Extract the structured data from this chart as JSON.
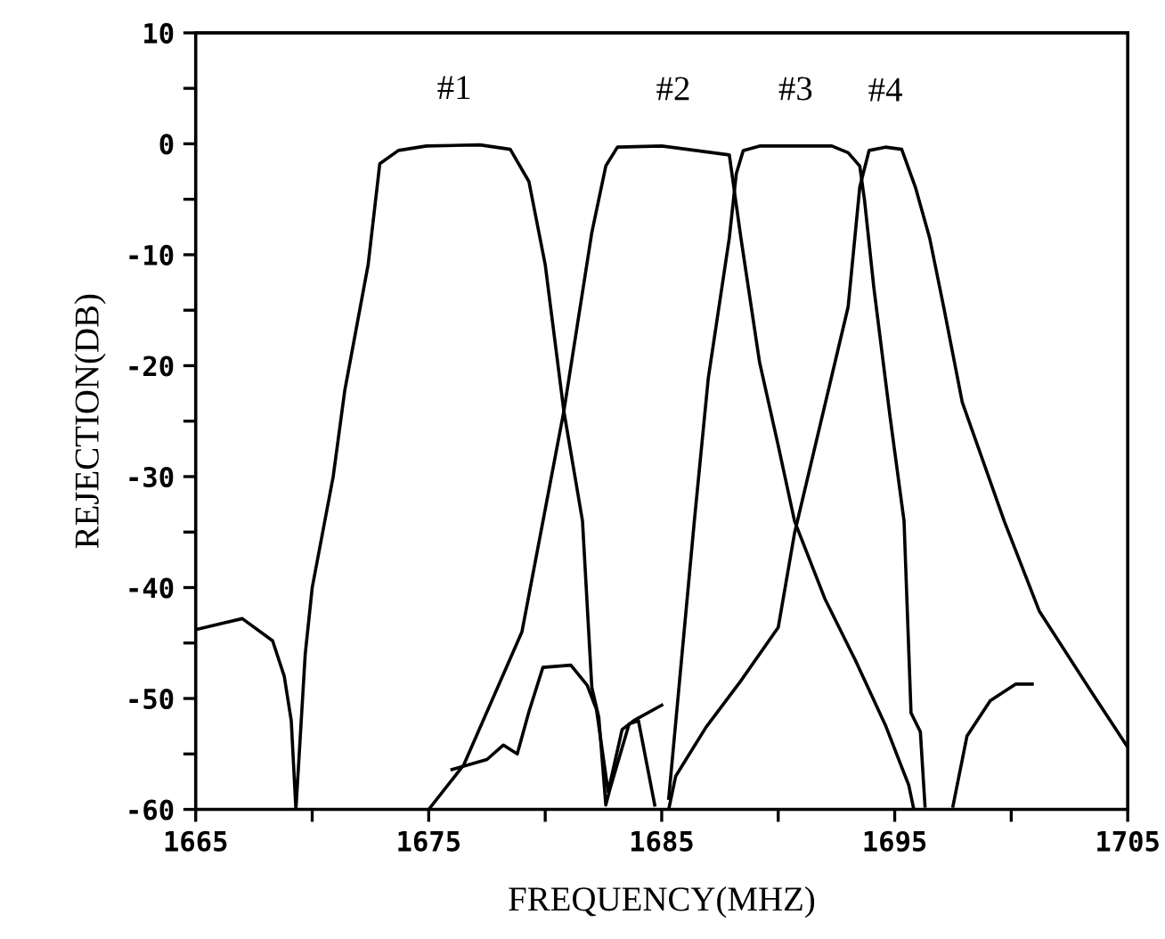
{
  "chart_data": {
    "type": "line",
    "xlabel": "FREQUENCY(MHZ)",
    "ylabel": "REJECTION(DB)",
    "xlim": [
      1665,
      1705
    ],
    "ylim": [
      -60,
      10
    ],
    "xticks": [
      1665,
      {
        "value": 1670,
        "label": null
      },
      1675,
      {
        "value": 1680,
        "label": null
      },
      1685,
      {
        "value": 1690,
        "label": null
      },
      1695,
      {
        "value": 1700,
        "label": null
      },
      1705
    ],
    "yticks": [
      -60,
      {
        "value": -55,
        "label": null
      },
      -50,
      {
        "value": -45,
        "label": null
      },
      -40,
      {
        "value": -35,
        "label": null
      },
      -30,
      {
        "value": -25,
        "label": null
      },
      -20,
      {
        "value": -15,
        "label": null
      },
      -10,
      {
        "value": -5,
        "label": null
      },
      0,
      {
        "value": 5,
        "label": null
      },
      10
    ],
    "grid": false,
    "marker": "none",
    "line_style": "solid",
    "series": [
      {
        "name": "#1",
        "color": "#000000",
        "x": [
          1665,
          1667.0,
          1668.3,
          1668.8,
          1669.1,
          1669.3,
          1669.7,
          1670.0,
          1670.9,
          1671.4,
          1672.4,
          1672.9,
          1673.7,
          1674.9,
          1677.2,
          1678.5,
          1679.3,
          1680.0,
          1680.8,
          1681.6,
          1682.0,
          1682.3,
          1682.6,
          1682.8,
          1683.6,
          1684.0,
          1684.7
        ],
        "values": [
          -43.8,
          -42.8,
          -44.8,
          -48,
          -52,
          -60,
          -46,
          -40,
          -30,
          -22.2,
          -10.9,
          -1.8,
          -0.6,
          -0.2,
          -0.1,
          -0.5,
          -3.4,
          -10.9,
          -24.1,
          -34,
          -49,
          -51.7,
          -59.6,
          -58,
          -52.3,
          -52,
          -59.6
        ]
      },
      {
        "name": "#2",
        "color": "#000000",
        "x": [
          1675.0,
          1676.5,
          1679.0,
          1680.8,
          1682.0,
          1682.6,
          1683.1,
          1685.0,
          1687.9,
          1688.4,
          1689.2,
          1690.0,
          1690.7,
          1692.0,
          1693.3,
          1694.6,
          1695.6,
          1695.8
        ],
        "values": [
          -60,
          -56,
          -44,
          -24.1,
          -8,
          -2,
          -0.3,
          -0.2,
          -1,
          -8.5,
          -19.7,
          -27.2,
          -34,
          -41,
          -46.5,
          -52.4,
          -57.8,
          -59.8
        ]
      },
      {
        "name": "#3",
        "color": "#000000",
        "x": [
          1685.3,
          1686.4,
          1687.0,
          1687.9,
          1688.2,
          1688.5,
          1689.2,
          1692.3,
          1693.0,
          1693.5,
          1693.7,
          1694.1,
          1694.8,
          1695.4,
          1695.7,
          1696.1,
          1696.3,
          1696.9,
          1697.5,
          1698.1,
          1699.1,
          1700.2,
          1700.9
        ],
        "values": [
          -59,
          -34,
          -21.1,
          -8.5,
          -2.7,
          -0.6,
          -0.2,
          -0.2,
          -0.8,
          -2,
          -5,
          -12.9,
          -24.6,
          -34,
          -51.3,
          -53,
          -59.7,
          null,
          -59.7,
          -53.4,
          -50.2,
          -48.7,
          -48.7
        ]
      },
      {
        "name": "#4",
        "color": "#000000",
        "x": [
          1676.0,
          1677.5,
          1678.2,
          1678.8,
          1679.3,
          1679.9,
          1681.1,
          1681.8,
          1682.2,
          1682.7,
          1683.3,
          1683.8,
          1685.0,
          1685.2,
          1685.3,
          1685.6,
          1686.9,
          1688.4,
          1690.0,
          1690.7,
          1693.0,
          1693.5,
          1693.9,
          1694.6,
          1695.3,
          1695.9,
          1696.5,
          1697.1,
          1697.9,
          1699.7,
          1701.2,
          1703.5,
          1705
        ],
        "values": [
          -56.4,
          -55.5,
          -54.2,
          -55,
          -51.2,
          -47.2,
          -47,
          -48.8,
          -51,
          -58.4,
          -52.8,
          -52,
          -50.6,
          null,
          -60,
          -57,
          -52.6,
          -48.4,
          -43.6,
          -35.1,
          -14.7,
          -3.9,
          -0.6,
          -0.3,
          -0.5,
          -4,
          -8.5,
          -14.7,
          -23.3,
          -34,
          -42.1,
          -49.6,
          -54.4
        ]
      }
    ]
  }
}
